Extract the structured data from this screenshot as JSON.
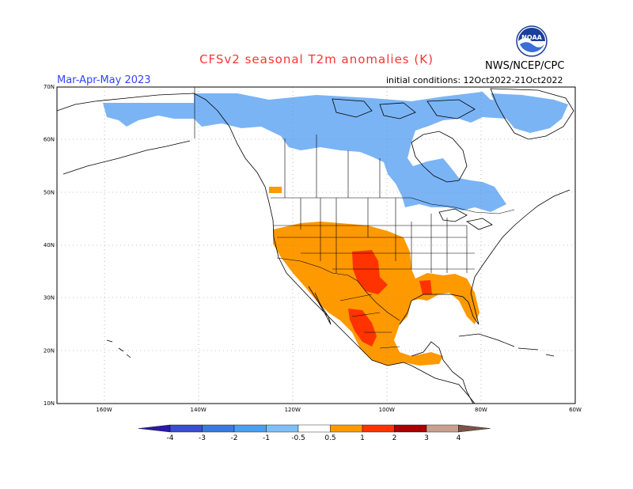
{
  "title": "CFSv2 seasonal T2m anomalies (K)",
  "agency": "NWS/NCEP/CPC",
  "logo_text": "NOAA",
  "season": "Mar-Apr-May 2023",
  "initial_conditions": "initial conditions: 12Oct2022-21Oct2022",
  "map": {
    "lat_ticks": [
      "10N",
      "20N",
      "30N",
      "40N",
      "50N",
      "60N",
      "70N"
    ],
    "lat_values": [
      10,
      20,
      30,
      40,
      50,
      60,
      70
    ],
    "lon_ticks": [
      "160W",
      "140W",
      "120W",
      "100W",
      "80W",
      "60W"
    ],
    "lon_values": [
      -160,
      -140,
      -120,
      -100,
      -80,
      -60
    ],
    "extent": {
      "lon_min": -170,
      "lon_max": -60,
      "lat_min": 10,
      "lat_max": 70
    }
  },
  "colorbar": {
    "labels": [
      "-4",
      "-3",
      "-2",
      "-1",
      "-0.5",
      "0.5",
      "1",
      "2",
      "3",
      "4"
    ],
    "colors": [
      "#2a1aa8",
      "#3a4ed0",
      "#3b78e0",
      "#4aa0f0",
      "#7fbff5",
      "#ffffff",
      "#ff9900",
      "#ff3300",
      "#aa0000",
      "#c8a090",
      "#7a5545"
    ]
  },
  "colors": {
    "cool": "#7ab4f5",
    "warm": "#ff9900",
    "hot": "#ff3300",
    "title": "#ff3333",
    "season": "#3344ff"
  }
}
